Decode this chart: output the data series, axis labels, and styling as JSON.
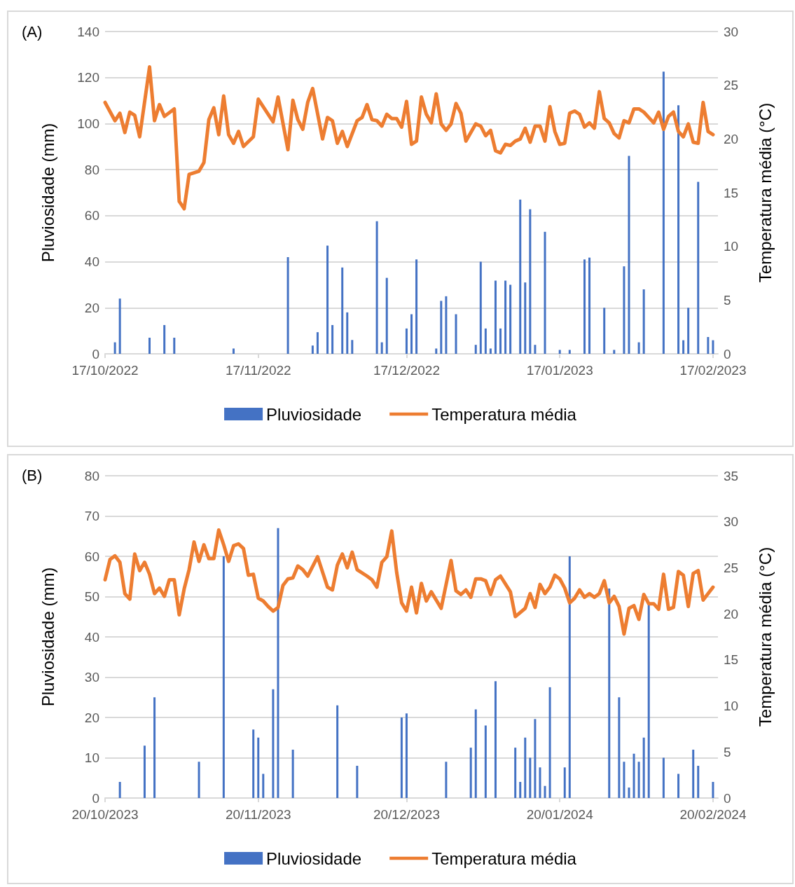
{
  "chart_data": [
    {
      "type": "bar",
      "title": "(A)",
      "ylabel": "Pluviosidade (mm)",
      "y2label": "Temperatura média (°C)",
      "xlim": [
        "2022-10-17",
        "2023-02-18"
      ],
      "xticks": [
        {
          "value": "2022-10-17",
          "label": "17/10/2022"
        },
        {
          "value": "2022-11-17",
          "label": "17/11/2022"
        },
        {
          "value": "2022-12-17",
          "label": "17/12/2022"
        },
        {
          "value": "2023-01-17",
          "label": "17/01/2023"
        },
        {
          "value": "2023-02-17",
          "label": "17/02/2023"
        }
      ],
      "ylim": [
        0,
        140
      ],
      "yticks": [
        0,
        20,
        40,
        60,
        80,
        100,
        120,
        140
      ],
      "y2lim": [
        0,
        30
      ],
      "y2ticks": [
        0,
        5,
        10,
        15,
        20,
        25,
        30
      ],
      "grid": "y",
      "legend": "bottom",
      "marker": "none",
      "line_style": "solid",
      "series": [
        {
          "name": "Pluviosidade",
          "color": "#4472c4",
          "x": [
            "2022-10-19",
            "2022-10-20",
            "2022-10-26",
            "2022-10-29",
            "2022-10-31",
            "2022-11-12",
            "2022-11-23",
            "2022-11-28",
            "2022-11-29",
            "2022-12-01",
            "2022-12-02",
            "2022-12-04",
            "2022-12-05",
            "2022-12-06",
            "2022-12-11",
            "2022-12-12",
            "2022-12-13",
            "2022-12-17",
            "2022-12-18",
            "2022-12-19",
            "2022-12-23",
            "2022-12-24",
            "2022-12-25",
            "2022-12-27",
            "2022-12-31",
            "2023-01-01",
            "2023-01-02",
            "2023-01-03",
            "2023-01-04",
            "2023-01-05",
            "2023-01-06",
            "2023-01-07",
            "2023-01-09",
            "2023-01-10",
            "2023-01-11",
            "2023-01-12",
            "2023-01-14",
            "2023-01-17",
            "2023-01-19",
            "2023-01-22",
            "2023-01-23",
            "2023-01-26",
            "2023-01-28",
            "2023-01-30",
            "2023-01-31",
            "2023-02-02",
            "2023-02-03",
            "2023-02-07",
            "2023-02-10",
            "2023-02-11",
            "2023-02-12",
            "2023-02-14",
            "2023-02-16",
            "2023-02-17"
          ],
          "values": [
            5,
            24,
            7,
            12.5,
            7,
            2.3,
            42,
            3.6,
            9.4,
            47,
            12.5,
            37.5,
            18,
            6,
            57.6,
            5,
            33,
            11,
            17.2,
            41,
            2.3,
            23,
            25,
            17.2,
            3.9,
            40,
            11,
            2.3,
            31.8,
            11,
            31.8,
            30,
            67,
            31,
            62.8,
            3.9,
            53,
            1.7,
            1.7,
            41,
            41.8,
            20,
            1.7,
            38,
            86,
            5,
            28,
            122.6,
            108,
            5.9,
            20,
            74.7,
            7.3,
            5.9
          ]
        },
        {
          "name": "Temperatura média",
          "type": "line",
          "axis": "y2",
          "color": "#ed7d31",
          "x": [
            "2022-10-17",
            "2022-10-19",
            "2022-10-20",
            "2022-10-21",
            "2022-10-22",
            "2022-10-23",
            "2022-10-24",
            "2022-10-26",
            "2022-10-27",
            "2022-10-28",
            "2022-10-29",
            "2022-10-31",
            "2022-11-01",
            "2022-11-02",
            "2022-11-03",
            "2022-11-05",
            "2022-11-06",
            "2022-11-07",
            "2022-11-08",
            "2022-11-09",
            "2022-11-10",
            "2022-11-11",
            "2022-11-12",
            "2022-11-13",
            "2022-11-14",
            "2022-11-16",
            "2022-11-17",
            "2022-11-20",
            "2022-11-21",
            "2022-11-23",
            "2022-11-24",
            "2022-11-25",
            "2022-11-26",
            "2022-11-27",
            "2022-11-28",
            "2022-11-30",
            "2022-12-01",
            "2022-12-02",
            "2022-12-03",
            "2022-12-04",
            "2022-12-05",
            "2022-12-07",
            "2022-12-08",
            "2022-12-09",
            "2022-12-10",
            "2022-12-11",
            "2022-12-12",
            "2022-12-13",
            "2022-12-14",
            "2022-12-15",
            "2022-12-16",
            "2022-12-17",
            "2022-12-18",
            "2022-12-19",
            "2022-12-20",
            "2022-12-21",
            "2022-12-22",
            "2022-12-23",
            "2022-12-24",
            "2022-12-25",
            "2022-12-26",
            "2022-12-27",
            "2022-12-28",
            "2022-12-29",
            "2022-12-31",
            "2023-01-01",
            "2023-01-02",
            "2023-01-03",
            "2023-01-04",
            "2023-01-05",
            "2023-01-06",
            "2023-01-07",
            "2023-01-08",
            "2023-01-09",
            "2023-01-10",
            "2023-01-11",
            "2023-01-12",
            "2023-01-13",
            "2023-01-14",
            "2023-01-15",
            "2023-01-16",
            "2023-01-17",
            "2023-01-18",
            "2023-01-19",
            "2023-01-20",
            "2023-01-21",
            "2023-01-22",
            "2023-01-23",
            "2023-01-24",
            "2023-01-25",
            "2023-01-26",
            "2023-01-27",
            "2023-01-28",
            "2023-01-29",
            "2023-01-30",
            "2023-01-31",
            "2023-02-01",
            "2023-02-02",
            "2023-02-03",
            "2023-02-04",
            "2023-02-05",
            "2023-02-06",
            "2023-02-07",
            "2023-02-08",
            "2023-02-09",
            "2023-02-10",
            "2023-02-11",
            "2023-02-12",
            "2023-02-13",
            "2023-02-14",
            "2023-02-15",
            "2023-02-16",
            "2023-02-17"
          ],
          "values": [
            23.4,
            21.7,
            22.4,
            20.6,
            22.5,
            22.2,
            20.2,
            26.7,
            21.7,
            23.2,
            22.1,
            22.8,
            14.2,
            13.5,
            16.7,
            17.0,
            17.8,
            21.8,
            22.9,
            20.4,
            24.0,
            20.4,
            19.6,
            20.7,
            19.3,
            20.2,
            23.7,
            21.6,
            23.9,
            19.0,
            23.6,
            21.8,
            20.9,
            23.4,
            24.7,
            20.0,
            22.0,
            21.7,
            19.6,
            20.7,
            19.3,
            21.7,
            22.0,
            23.2,
            21.8,
            21.7,
            21.2,
            22.3,
            21.9,
            21.9,
            21.1,
            23.5,
            19.5,
            19.8,
            23.9,
            22.3,
            21.5,
            24.2,
            21.4,
            20.8,
            21.4,
            23.3,
            22.4,
            19.8,
            21.4,
            21.2,
            20.3,
            20.8,
            18.9,
            18.7,
            19.5,
            19.4,
            19.8,
            20.0,
            21.0,
            19.7,
            21.2,
            21.2,
            19.8,
            23.0,
            20.7,
            19.5,
            19.6,
            22.4,
            22.6,
            22.3,
            21.1,
            21.5,
            21.0,
            24.4,
            21.9,
            21.5,
            20.5,
            20.1,
            21.7,
            21.5,
            22.8,
            22.8,
            22.5,
            22.0,
            21.5,
            22.5,
            20.9,
            22.1,
            22.5,
            20.7,
            20.2,
            21.4,
            19.7,
            19.6,
            23.4,
            20.7,
            20.4
          ]
        }
      ]
    },
    {
      "type": "bar",
      "title": "(B)",
      "ylabel": "Pluviosidade (mm)",
      "y2label": "Temperatura média (°C)",
      "xlim": [
        "2023-10-20",
        "2024-02-21"
      ],
      "xticks": [
        {
          "value": "2023-10-20",
          "label": "20/10/2023"
        },
        {
          "value": "2023-11-20",
          "label": "20/11/2023"
        },
        {
          "value": "2023-12-20",
          "label": "20/12/2023"
        },
        {
          "value": "2024-01-20",
          "label": "20/01/2024"
        },
        {
          "value": "2024-02-20",
          "label": "20/02/2024"
        }
      ],
      "ylim": [
        0,
        80
      ],
      "yticks": [
        0,
        10,
        20,
        30,
        40,
        50,
        60,
        70,
        80
      ],
      "y2lim": [
        0,
        35
      ],
      "y2ticks": [
        0,
        5,
        10,
        15,
        20,
        25,
        30,
        35
      ],
      "grid": "y",
      "legend": "bottom",
      "marker": "none",
      "line_style": "solid",
      "series": [
        {
          "name": "Pluviosidade",
          "color": "#4472c4",
          "x": [
            "2023-10-23",
            "2023-10-28",
            "2023-10-30",
            "2023-11-08",
            "2023-11-13",
            "2023-11-19",
            "2023-11-20",
            "2023-11-21",
            "2023-11-23",
            "2023-11-24",
            "2023-11-27",
            "2023-12-06",
            "2023-12-10",
            "2023-12-19",
            "2023-12-20",
            "2023-12-28",
            "2024-01-02",
            "2024-01-03",
            "2024-01-05",
            "2024-01-07",
            "2024-01-11",
            "2024-01-12",
            "2024-01-13",
            "2024-01-14",
            "2024-01-15",
            "2024-01-16",
            "2024-01-17",
            "2024-01-18",
            "2024-01-21",
            "2024-01-22",
            "2024-01-30",
            "2024-02-01",
            "2024-02-02",
            "2024-02-03",
            "2024-02-04",
            "2024-02-05",
            "2024-02-06",
            "2024-02-07",
            "2024-02-10",
            "2024-02-13",
            "2024-02-16",
            "2024-02-17",
            "2024-02-20"
          ],
          "values": [
            4,
            13,
            25,
            9,
            60,
            17,
            15,
            6,
            27,
            67,
            12,
            23,
            8,
            20,
            21,
            9,
            12.5,
            22,
            18,
            29,
            12.5,
            4,
            15,
            10,
            19.6,
            7.6,
            3,
            27.5,
            7.6,
            60,
            52,
            25,
            9,
            2.6,
            11,
            9,
            15,
            48,
            10,
            6,
            12,
            8,
            4
          ]
        },
        {
          "name": "Temperatura média",
          "type": "line",
          "axis": "y2",
          "color": "#ed7d31",
          "x": [
            "2023-10-20",
            "2023-10-21",
            "2023-10-22",
            "2023-10-23",
            "2023-10-24",
            "2023-10-25",
            "2023-10-26",
            "2023-10-27",
            "2023-10-28",
            "2023-10-29",
            "2023-10-30",
            "2023-10-31",
            "2023-11-01",
            "2023-11-02",
            "2023-11-03",
            "2023-11-04",
            "2023-11-05",
            "2023-11-06",
            "2023-11-07",
            "2023-11-08",
            "2023-11-09",
            "2023-11-10",
            "2023-11-11",
            "2023-11-12",
            "2023-11-13",
            "2023-11-14",
            "2023-11-15",
            "2023-11-16",
            "2023-11-17",
            "2023-11-18",
            "2023-11-19",
            "2023-11-20",
            "2023-11-21",
            "2023-11-22",
            "2023-11-23",
            "2023-11-24",
            "2023-11-25",
            "2023-11-26",
            "2023-11-27",
            "2023-11-28",
            "2023-11-29",
            "2023-11-30",
            "2023-12-02",
            "2023-12-04",
            "2023-12-05",
            "2023-12-06",
            "2023-12-07",
            "2023-12-08",
            "2023-12-09",
            "2023-12-10",
            "2023-12-12",
            "2023-12-13",
            "2023-12-14",
            "2023-12-15",
            "2023-12-16",
            "2023-12-17",
            "2023-12-18",
            "2023-12-19",
            "2023-12-20",
            "2023-12-21",
            "2023-12-22",
            "2023-12-23",
            "2023-12-24",
            "2023-12-25",
            "2023-12-27",
            "2023-12-29",
            "2023-12-30",
            "2023-12-31",
            "2024-01-01",
            "2024-01-02",
            "2024-01-03",
            "2024-01-04",
            "2024-01-05",
            "2024-01-06",
            "2024-01-07",
            "2024-01-08",
            "2024-01-10",
            "2024-01-11",
            "2024-01-13",
            "2024-01-14",
            "2024-01-15",
            "2024-01-16",
            "2024-01-17",
            "2024-01-18",
            "2024-01-19",
            "2024-01-20",
            "2024-01-21",
            "2024-01-22",
            "2024-01-23",
            "2024-01-24",
            "2024-01-25",
            "2024-01-26",
            "2024-01-27",
            "2024-01-28",
            "2024-01-29",
            "2024-01-30",
            "2024-01-31",
            "2024-02-01",
            "2024-02-02",
            "2024-02-03",
            "2024-02-04",
            "2024-02-05",
            "2024-02-06",
            "2024-02-07",
            "2024-02-08",
            "2024-02-09",
            "2024-02-10",
            "2024-02-11",
            "2024-02-12",
            "2024-02-13",
            "2024-02-14",
            "2024-02-15",
            "2024-02-16",
            "2024-02-17",
            "2024-02-18",
            "2024-02-19",
            "2024-02-20"
          ],
          "values": [
            23.7,
            25.9,
            26.3,
            25.6,
            22.2,
            21.6,
            26.5,
            24.7,
            25.6,
            24.3,
            22.2,
            22.8,
            21.9,
            23.7,
            23.7,
            19.9,
            22.7,
            24.8,
            27.8,
            25.7,
            27.5,
            26.0,
            26.0,
            29.1,
            27.5,
            25.7,
            27.4,
            27.6,
            27.1,
            24.2,
            24.3,
            21.7,
            21.4,
            20.8,
            20.3,
            20.7,
            23.1,
            23.8,
            23.9,
            25.2,
            24.8,
            24.1,
            26.2,
            22.9,
            22.6,
            25.3,
            26.5,
            25.0,
            26.7,
            24.8,
            24.1,
            23.7,
            22.9,
            25.6,
            26.2,
            29.0,
            24.5,
            21.2,
            20.3,
            22.9,
            20.1,
            23.3,
            21.4,
            22.4,
            20.6,
            25.8,
            22.5,
            22.1,
            22.6,
            21.8,
            23.8,
            23.8,
            23.6,
            22.1,
            23.7,
            24.1,
            22.4,
            19.7,
            20.6,
            22.2,
            20.7,
            23.2,
            22.2,
            22.9,
            24.2,
            23.8,
            22.8,
            21.2,
            21.7,
            22.6,
            21.8,
            22.2,
            21.8,
            22.2,
            23.6,
            21.2,
            21.9,
            20.8,
            17.8,
            20.6,
            20.9,
            19.4,
            22.1,
            21.1,
            21.1,
            20.5,
            24.3,
            20.5,
            20.7,
            24.6,
            24.2,
            20.8,
            24.4,
            24.7,
            21.5,
            22.2,
            22.9
          ]
        }
      ]
    }
  ]
}
